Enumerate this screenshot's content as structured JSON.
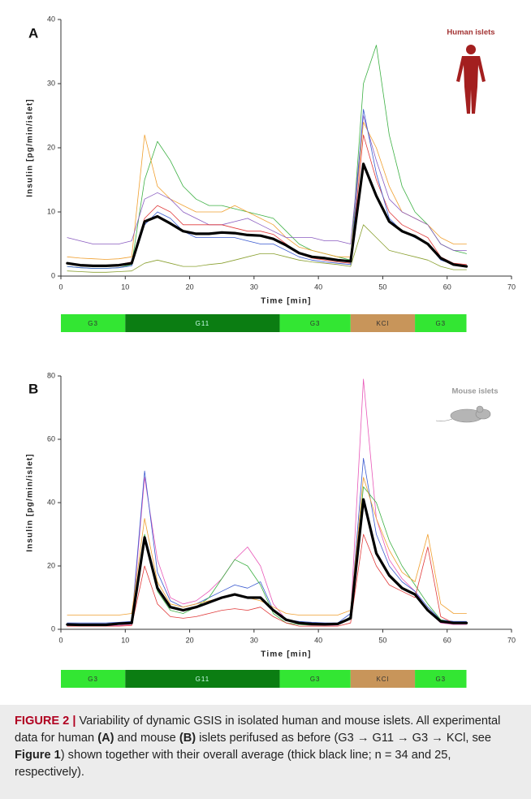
{
  "chart_data": [
    {
      "type": "line",
      "panel_label": "A",
      "species_label": "Human islets",
      "ylabel": "Insulin [pg/min/islet]",
      "xlabel": "Time [min]",
      "xlim": [
        0,
        70
      ],
      "xticks": [
        0,
        10,
        20,
        30,
        40,
        50,
        60,
        70
      ],
      "ylim": [
        0,
        40
      ],
      "yticks": [
        0,
        10,
        20,
        30,
        40
      ],
      "x": [
        1,
        3,
        5,
        7,
        9,
        11,
        13,
        15,
        17,
        19,
        21,
        23,
        25,
        27,
        29,
        31,
        33,
        35,
        37,
        39,
        41,
        43,
        45,
        47,
        49,
        51,
        53,
        55,
        57,
        59,
        61,
        63
      ],
      "series": [
        {
          "color": "#3cb043",
          "width": 0.8,
          "values": [
            1.5,
            1.3,
            1.2,
            1.2,
            1.3,
            1.8,
            15,
            21,
            18,
            14,
            12,
            11,
            11,
            10.5,
            10,
            9.5,
            9,
            7,
            5,
            4,
            3.5,
            3,
            2.5,
            30,
            36,
            22,
            14,
            10,
            8,
            5,
            4,
            3.5
          ]
        },
        {
          "color": "#f0a030",
          "width": 0.8,
          "values": [
            3,
            2.8,
            2.7,
            2.6,
            2.7,
            3,
            22,
            14,
            12,
            11,
            10,
            10,
            10,
            11,
            10,
            9,
            8,
            6,
            4.5,
            4,
            3.5,
            3,
            3,
            24,
            20,
            14,
            10,
            9,
            8,
            6,
            5,
            5
          ]
        },
        {
          "color": "#8a5cc0",
          "width": 0.8,
          "values": [
            6,
            5.5,
            5,
            5,
            5,
            5.5,
            12,
            13,
            12,
            10,
            9,
            8,
            8,
            8.5,
            9,
            8,
            7,
            6,
            6,
            6,
            5.5,
            5.5,
            5,
            25,
            18,
            12,
            10,
            9,
            8,
            5,
            4,
            4
          ]
        },
        {
          "color": "#e03a3a",
          "width": 0.8,
          "values": [
            2,
            1.8,
            1.7,
            1.7,
            1.8,
            2.2,
            9,
            11,
            10,
            8,
            8,
            8,
            8,
            7.5,
            7,
            7,
            6.5,
            5,
            3.5,
            2.8,
            2.5,
            2.2,
            2,
            22,
            15,
            10,
            8,
            7,
            6,
            3,
            2,
            1.8
          ]
        },
        {
          "color": "#8aa030",
          "width": 0.8,
          "values": [
            0.8,
            0.7,
            0.6,
            0.6,
            0.7,
            0.8,
            2,
            2.5,
            2,
            1.5,
            1.5,
            1.8,
            2,
            2.5,
            3,
            3.5,
            3.5,
            3,
            2.5,
            2.2,
            2,
            1.8,
            1.5,
            8,
            6,
            4,
            3.5,
            3,
            2.5,
            1.5,
            1,
            1
          ]
        },
        {
          "color": "#3a5ad0",
          "width": 0.8,
          "values": [
            1.5,
            1.3,
            1.2,
            1.2,
            1.3,
            1.6,
            8,
            10,
            9,
            7,
            6,
            6,
            6,
            6,
            5.5,
            5,
            5,
            4,
            3,
            2.5,
            2.2,
            2,
            1.8,
            26,
            16,
            9,
            7,
            6,
            5,
            2.5,
            1.8,
            1.5
          ]
        },
        {
          "color": "#000000",
          "width": 3.2,
          "values": [
            2.0,
            1.7,
            1.6,
            1.6,
            1.7,
            2.0,
            8.5,
            9.3,
            8.2,
            7.0,
            6.6,
            6.6,
            6.8,
            6.7,
            6.4,
            6.3,
            5.8,
            4.8,
            3.6,
            3.0,
            2.8,
            2.5,
            2.3,
            17.5,
            12.5,
            8.5,
            7.0,
            6.2,
            5.0,
            2.8,
            1.8,
            1.5
          ]
        }
      ],
      "stimuli": [
        {
          "label": "G3",
          "start": 0,
          "end": 10,
          "color": "#33e633"
        },
        {
          "label": "G11",
          "start": 10,
          "end": 34,
          "color": "#0b7d12"
        },
        {
          "label": "G3",
          "start": 34,
          "end": 45,
          "color": "#33e633"
        },
        {
          "label": "KCl",
          "start": 45,
          "end": 55,
          "color": "#c8955a"
        },
        {
          "label": "G3",
          "start": 55,
          "end": 63,
          "color": "#33e633"
        }
      ]
    },
    {
      "type": "line",
      "panel_label": "B",
      "species_label": "Mouse islets",
      "ylabel": "Insulin [pg/min/islet]",
      "xlabel": "Time [min]",
      "xlim": [
        0,
        70
      ],
      "xticks": [
        0,
        10,
        20,
        30,
        40,
        50,
        60,
        70
      ],
      "ylim": [
        0,
        80
      ],
      "yticks": [
        0,
        20,
        40,
        60,
        80
      ],
      "x": [
        1,
        3,
        5,
        7,
        9,
        11,
        13,
        15,
        17,
        19,
        21,
        23,
        25,
        27,
        29,
        31,
        33,
        35,
        37,
        39,
        41,
        43,
        45,
        47,
        49,
        51,
        53,
        55,
        57,
        59,
        61,
        63
      ],
      "series": [
        {
          "color": "#e858b8",
          "width": 0.8,
          "values": [
            1,
            1,
            1,
            1,
            1.2,
            1.5,
            48,
            22,
            10,
            8,
            9,
            12,
            16,
            22,
            26,
            20,
            8,
            3,
            1.5,
            1.2,
            1.2,
            1.3,
            4,
            79,
            35,
            22,
            16,
            12,
            6,
            2,
            1.5,
            1.5
          ]
        },
        {
          "color": "#3a5ad0",
          "width": 0.8,
          "values": [
            2,
            2,
            2,
            2,
            2.2,
            2.5,
            50,
            18,
            9,
            7,
            8,
            10,
            12,
            14,
            13,
            15,
            6,
            3,
            2.5,
            2.2,
            2,
            2,
            5,
            54,
            30,
            20,
            15,
            12,
            7,
            3,
            2.5,
            2.5
          ]
        },
        {
          "color": "#3cb043",
          "width": 0.8,
          "values": [
            1.5,
            1.4,
            1.4,
            1.4,
            1.6,
            2,
            30,
            12,
            6,
            5,
            7,
            10,
            16,
            22,
            20,
            14,
            5,
            2,
            1.5,
            1.3,
            1.3,
            1.4,
            4,
            45,
            40,
            28,
            20,
            14,
            8,
            3,
            2,
            2
          ]
        },
        {
          "color": "#f0a030",
          "width": 0.8,
          "values": [
            4.5,
            4.5,
            4.5,
            4.5,
            4.5,
            5,
            35,
            15,
            8,
            7,
            8,
            9,
            10,
            11,
            10,
            9,
            7,
            5,
            4.5,
            4.5,
            4.5,
            4.5,
            6,
            48,
            35,
            25,
            18,
            15,
            30,
            8,
            5,
            5
          ]
        },
        {
          "color": "#e03a3a",
          "width": 0.8,
          "values": [
            1,
            1,
            1,
            1,
            1,
            1.2,
            20,
            8,
            4,
            3.5,
            4,
            5,
            6,
            6.5,
            6,
            7,
            4,
            2,
            1,
            1,
            1,
            1,
            2,
            30,
            20,
            14,
            12,
            10,
            26,
            4,
            2,
            2
          ]
        },
        {
          "color": "#000000",
          "width": 3.2,
          "values": [
            1.5,
            1.4,
            1.4,
            1.4,
            1.8,
            2.0,
            29,
            13,
            7,
            6,
            7,
            8.5,
            10,
            11,
            10,
            10,
            6,
            3,
            2,
            1.7,
            1.6,
            1.7,
            3.5,
            41,
            24,
            17,
            13,
            11,
            6,
            2.5,
            2,
            2
          ]
        }
      ],
      "stimuli": [
        {
          "label": "G3",
          "start": 0,
          "end": 10,
          "color": "#33e633"
        },
        {
          "label": "G11",
          "start": 10,
          "end": 34,
          "color": "#0b7d12"
        },
        {
          "label": "G3",
          "start": 34,
          "end": 45,
          "color": "#33e633"
        },
        {
          "label": "KCl",
          "start": 45,
          "end": 55,
          "color": "#c8955a"
        },
        {
          "label": "G3",
          "start": 55,
          "end": 63,
          "color": "#33e633"
        }
      ]
    }
  ],
  "caption": [
    {
      "text": "FIGURE 2 |",
      "style": "head"
    },
    {
      "text": " Variability of dynamic GSIS in isolated human and mouse islets. All experimental data for human ",
      "style": "plain"
    },
    {
      "text": "(A)",
      "style": "bold"
    },
    {
      "text": " and mouse ",
      "style": "plain"
    },
    {
      "text": "(B)",
      "style": "bold"
    },
    {
      "text": " islets perifused as before (G3 → G11 → G3 → KCl, see ",
      "style": "plain"
    },
    {
      "text": "Figure 1",
      "style": "bold"
    },
    {
      "text": ") shown together with their overall average (thick black line; n = 34 and 25, respectively).",
      "style": "plain"
    }
  ]
}
